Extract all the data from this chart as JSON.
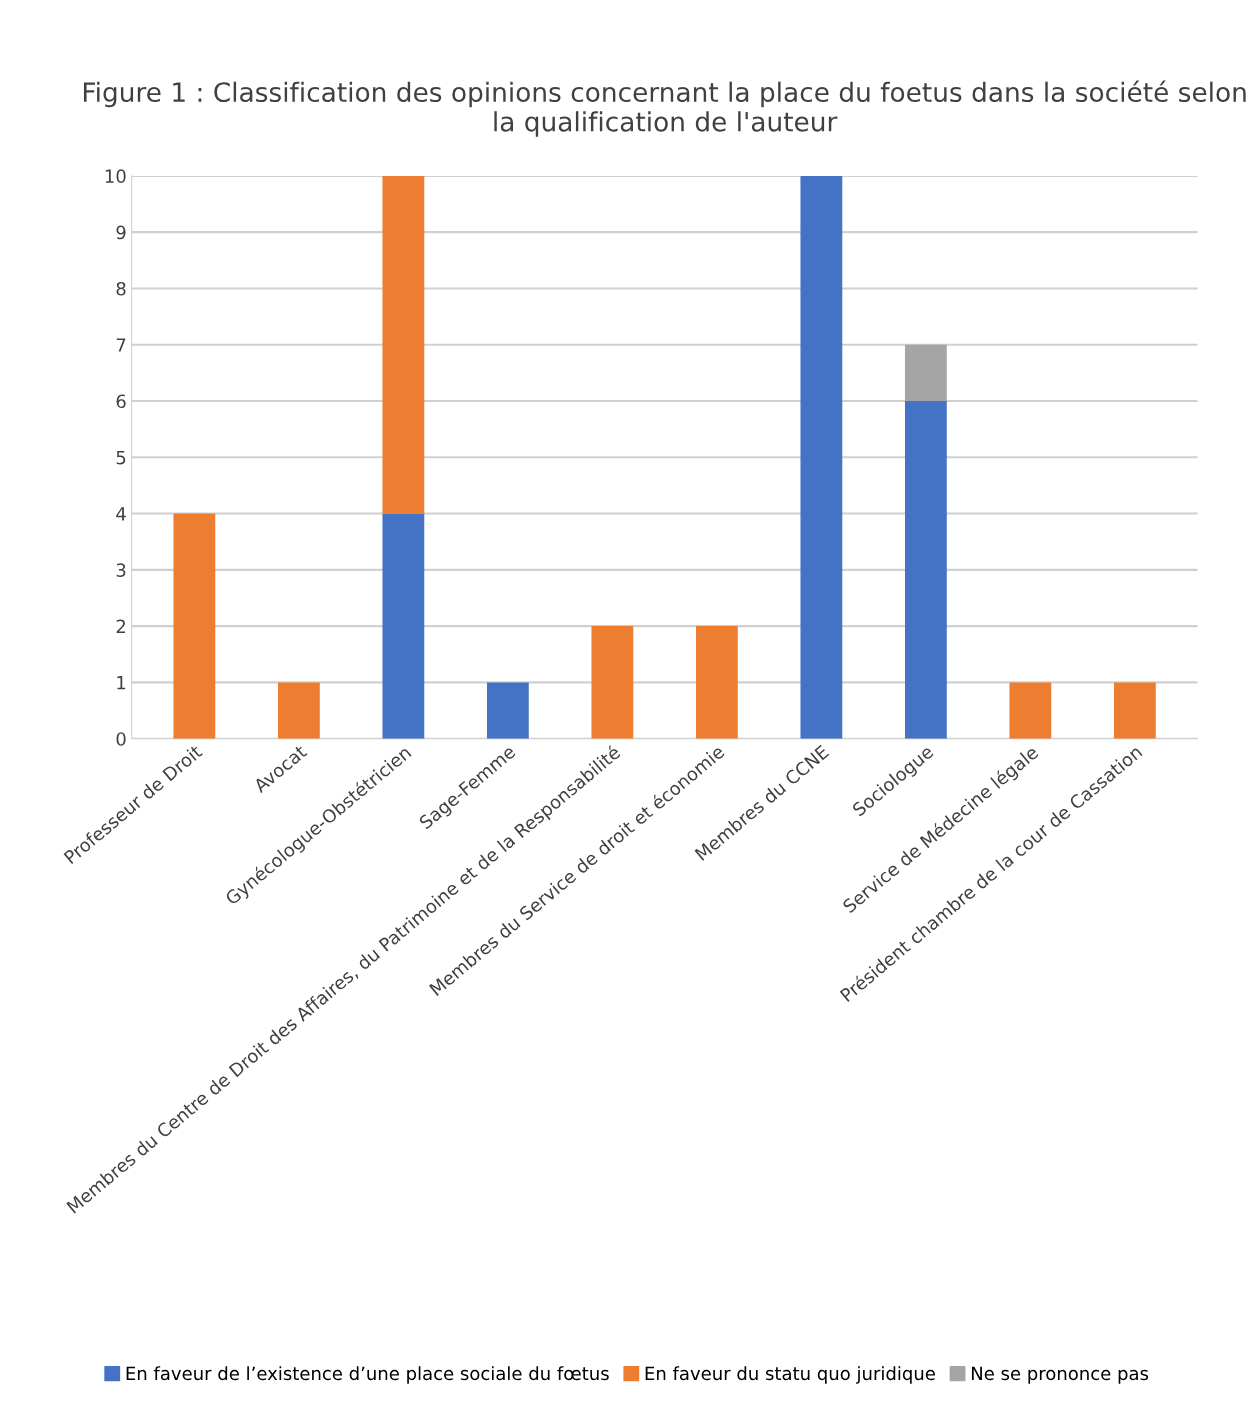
{
  "chart_data": {
    "type": "bar",
    "stacked": true,
    "title": "Figure 1 : Classification des opinions concernant la place du foetus dans la société selon la qualification de l'auteur",
    "categories": [
      "Professeur de Droit",
      "Avocat",
      "Gynécologue-Obstétricien",
      "Sage-Femme",
      "Membres du Centre de Droit des Affaires, du Patrimoine et de la Responsabilité",
      "Membres du Service de droit et économie",
      "Membres du CCNE",
      "Sociologue",
      "Service de Médecine légale",
      "Président chambre de la cour de Cassation"
    ],
    "series": [
      {
        "name": "En faveur de l’existence d’une place sociale du fœtus",
        "color": "#4472c4",
        "values": [
          null,
          null,
          4,
          1,
          null,
          null,
          10,
          6,
          null,
          null
        ]
      },
      {
        "name": "En faveur du statu quo juridique",
        "color": "#ed7d31",
        "values": [
          4,
          1,
          6,
          null,
          2,
          2,
          null,
          null,
          1,
          1
        ]
      },
      {
        "name": "Ne se prononce pas",
        "color": "#a5a5a5",
        "values": [
          null,
          null,
          null,
          null,
          null,
          null,
          null,
          1,
          null,
          null
        ]
      }
    ],
    "ylim": [
      0,
      10
    ],
    "yticks": [
      0,
      1,
      2,
      3,
      4,
      5,
      6,
      7,
      8,
      9,
      10
    ],
    "grid": "y",
    "legend": "bottom"
  }
}
